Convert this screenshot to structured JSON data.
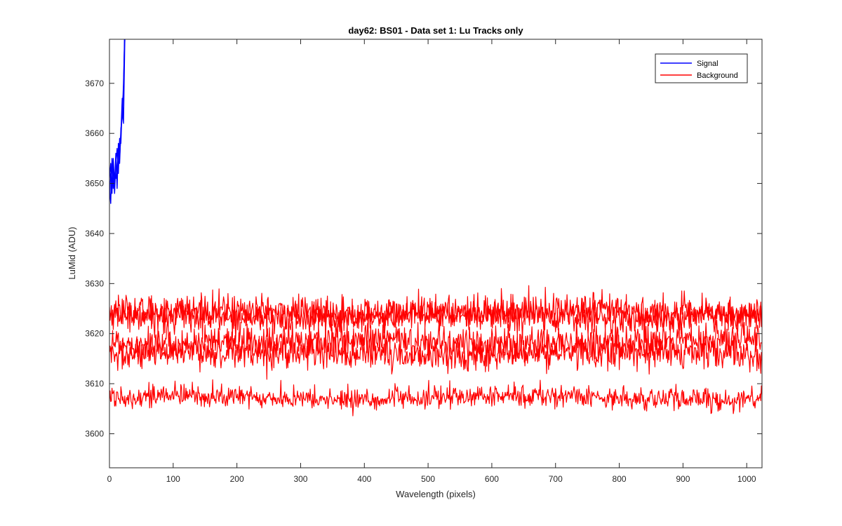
{
  "chart_data": {
    "type": "line",
    "title": "day62: BS01 - Data set 1: Lu Tracks only",
    "xlabel": "Wavelength (pixels)",
    "ylabel": "LuMid (ADU)",
    "xlim": [
      0,
      1024
    ],
    "ylim": [
      3593.2,
      3678.8
    ],
    "xticks": [
      0,
      100,
      200,
      300,
      400,
      500,
      600,
      700,
      800,
      900,
      1000
    ],
    "yticks": [
      3600,
      3610,
      3620,
      3630,
      3640,
      3650,
      3660,
      3670
    ],
    "grid": false,
    "legend": {
      "location": "top-right",
      "entries": [
        "Signal",
        "Background"
      ]
    },
    "series": [
      {
        "name": "Signal",
        "color": "#0000ff",
        "lines": [
          {
            "x": [
              0,
              2,
              4,
              6,
              8,
              10,
              12,
              14,
              16,
              18,
              20,
              22,
              24,
              26
            ],
            "y": [
              3649,
              3646,
              3655,
              3649,
              3652,
              3651,
              3653,
              3657,
              3655,
              3660,
              3667,
              3662,
              3678,
              3685
            ]
          },
          {
            "x": [
              0,
              2,
              4,
              6,
              8,
              10,
              12,
              14,
              16,
              18,
              20,
              22,
              24,
              26
            ],
            "y": [
              3651,
              3654,
              3648,
              3655,
              3650,
              3656,
              3649,
              3658,
              3654,
              3661,
              3663,
              3670,
              3680,
              3690
            ]
          },
          {
            "x": [
              0,
              2,
              4,
              6,
              8,
              10,
              12,
              14,
              16,
              18,
              20,
              22,
              24,
              26
            ],
            "y": [
              3647,
              3652,
              3650,
              3653,
              3648,
              3654,
              3657,
              3652,
              3659,
              3658,
              3666,
              3668,
              3682,
              3692
            ]
          }
        ]
      },
      {
        "name": "Background",
        "color": "#ff0000",
        "lines": [
          {
            "mean": 3624.3,
            "spread": 2.2,
            "x": [
              0,
              1024
            ]
          },
          {
            "mean": 3623.5,
            "spread": 2.0,
            "x": [
              0,
              1024
            ]
          },
          {
            "mean": 3618.3,
            "spread": 2.3,
            "x": [
              0,
              1024
            ]
          },
          {
            "mean": 3616.0,
            "spread": 2.2,
            "x": [
              0,
              1024
            ]
          },
          {
            "mean": 3607.2,
            "spread": 1.5,
            "x": [
              0,
              1024
            ]
          }
        ]
      }
    ]
  }
}
